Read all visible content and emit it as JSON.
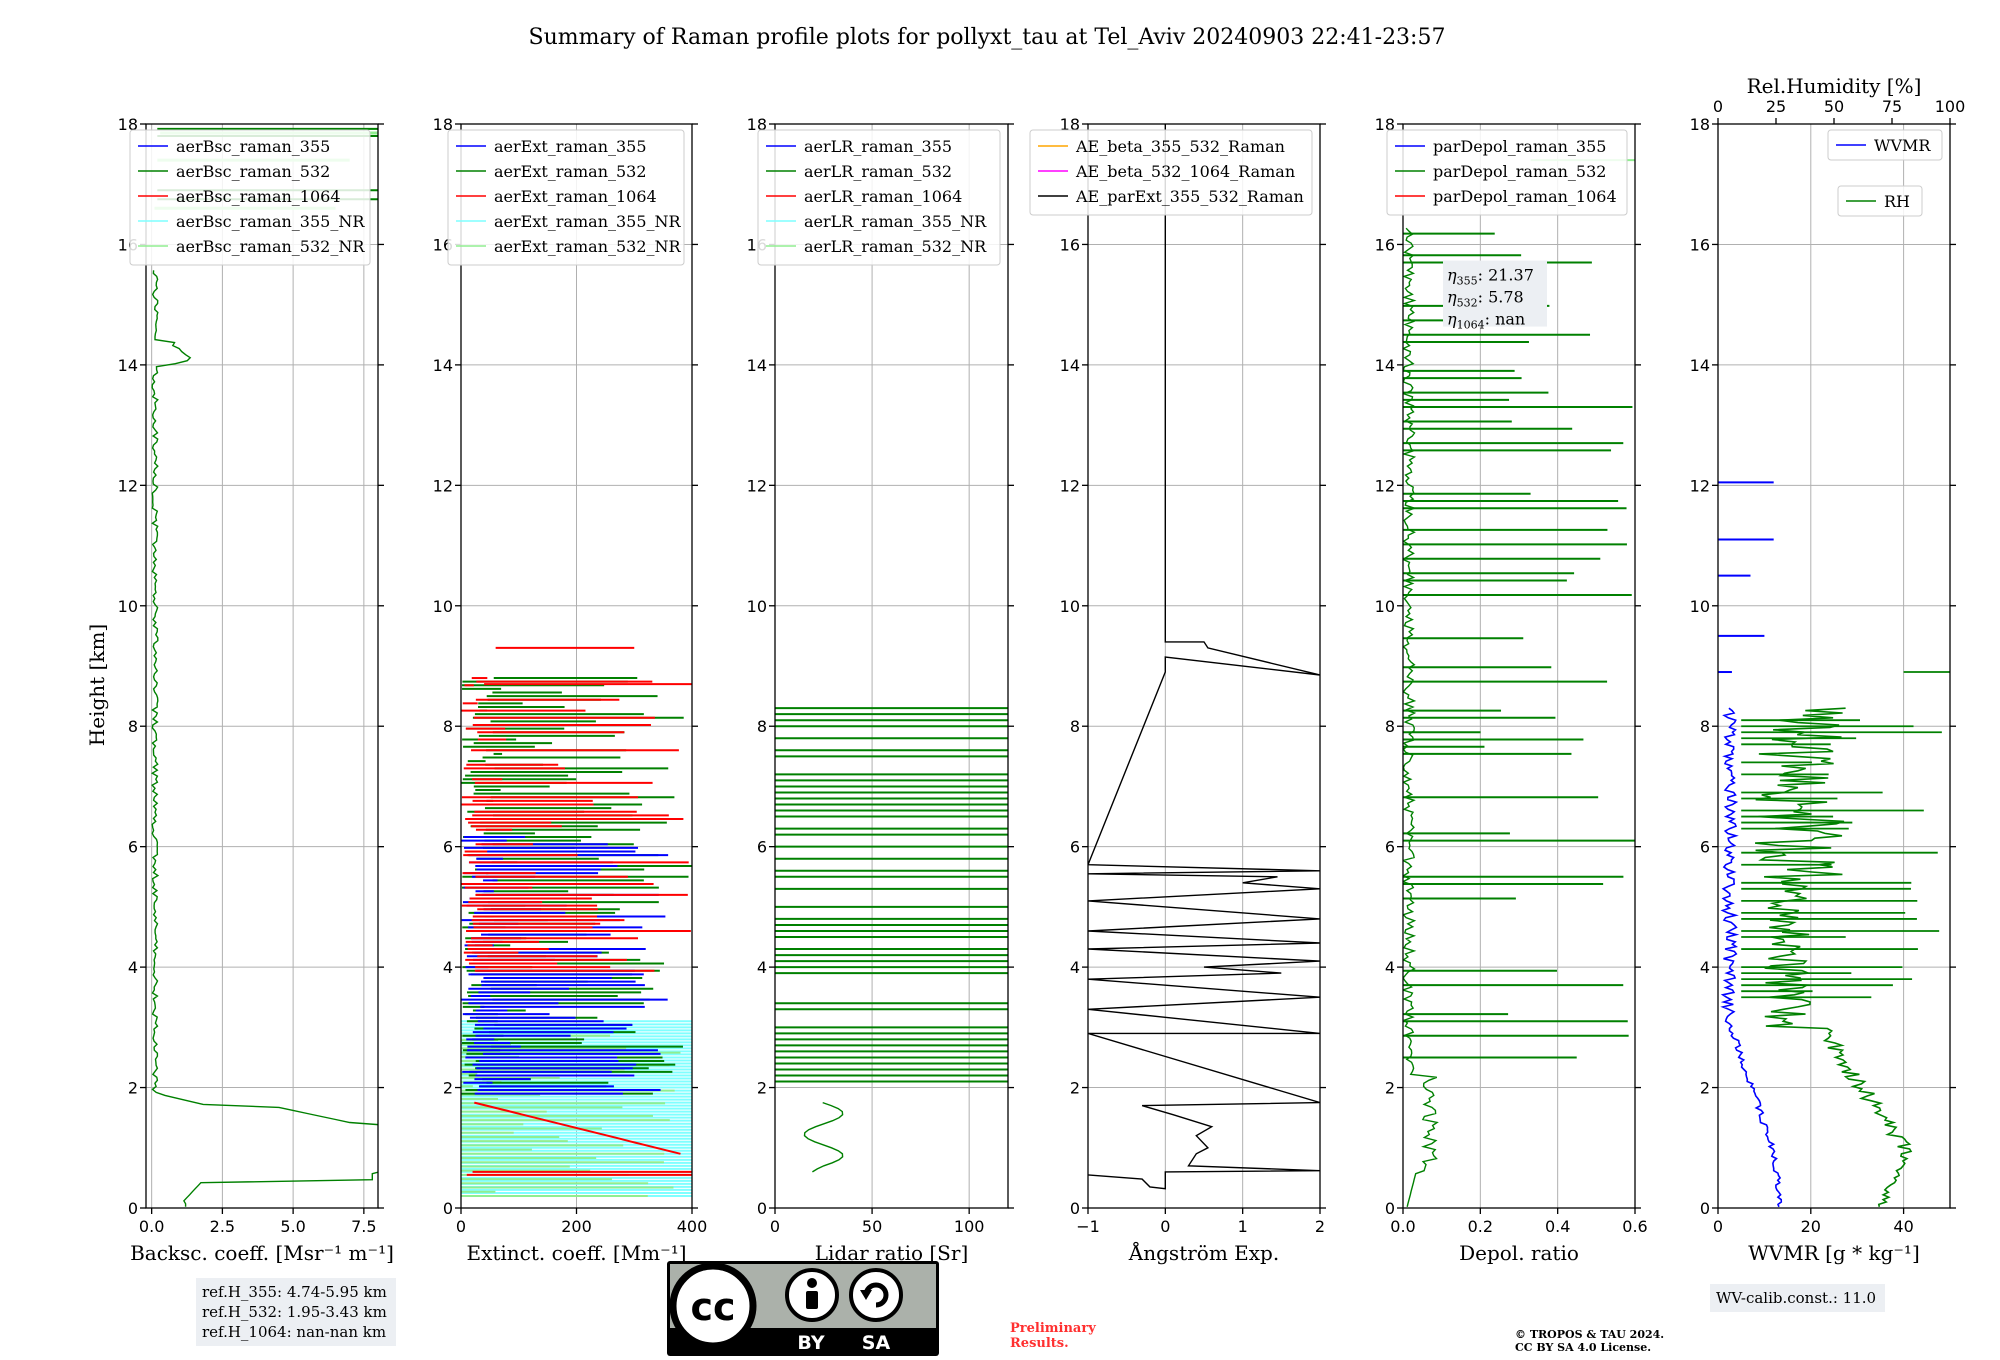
{
  "title": "Summary of Raman profile plots for pollyxt_tau at Tel_Aviv 20240903 22:41-23:57",
  "ylabel": "Height [km]",
  "colors": {
    "c355": "#0000ff",
    "c532": "#008000",
    "c1064": "#ff0000",
    "c355NR": "#7fffff",
    "c532NR": "#90ee90",
    "ae1": "#ffa500",
    "ae2": "#ff00ff",
    "ae3": "#000000",
    "prelim": "#ff3030"
  },
  "chart_data": [
    {
      "type": "line",
      "id": "bsc",
      "xlabel": "Backsc. coeff. [Msr⁻¹ m⁻¹]",
      "xlim": [
        -0.2,
        8.0
      ],
      "ylim": [
        0,
        18
      ],
      "xticks": [
        "0.0",
        "2.5",
        "5.0",
        "7.5"
      ],
      "xtick_values": [
        0,
        2.5,
        5,
        7.5
      ],
      "yticks": [
        0,
        2,
        4,
        6,
        8,
        10,
        12,
        14,
        16,
        18
      ],
      "legend": [
        "aerBsc_raman_355",
        "aerBsc_raman_532",
        "aerBsc_raman_1064",
        "aerBsc_raman_355_NR",
        "aerBsc_raman_532_NR"
      ],
      "legend_location": "top-right"
    },
    {
      "type": "line",
      "id": "ext",
      "xlabel": "Extinct. coeff. [Mm⁻¹]",
      "xlim": [
        0,
        400
      ],
      "ylim": [
        0,
        18
      ],
      "xticks": [
        "0",
        "200",
        "400"
      ],
      "xtick_values": [
        0,
        200,
        400
      ],
      "yticks": [
        0,
        2,
        4,
        6,
        8,
        10,
        12,
        14,
        16,
        18
      ],
      "legend": [
        "aerExt_raman_355",
        "aerExt_raman_532",
        "aerExt_raman_1064",
        "aerExt_raman_355_NR",
        "aerExt_raman_532_NR"
      ],
      "legend_location": "top-right"
    },
    {
      "type": "line",
      "id": "lr",
      "xlabel": "Lidar ratio [Sr]",
      "xlim": [
        0,
        120
      ],
      "ylim": [
        0,
        18
      ],
      "xticks": [
        "0",
        "50",
        "100"
      ],
      "xtick_values": [
        0,
        50,
        100
      ],
      "yticks": [
        0,
        2,
        4,
        6,
        8,
        10,
        12,
        14,
        16,
        18
      ],
      "legend": [
        "aerLR_raman_355",
        "aerLR_raman_532",
        "aerLR_raman_1064",
        "aerLR_raman_355_NR",
        "aerLR_raman_532_NR"
      ],
      "legend_location": "top-right"
    },
    {
      "type": "line",
      "id": "ae",
      "xlabel": "Ångström Exp.",
      "xlim": [
        -1,
        2
      ],
      "ylim": [
        0,
        18
      ],
      "xticks": [
        "−1",
        "0",
        "1",
        "2"
      ],
      "xtick_values": [
        -1,
        0,
        1,
        2
      ],
      "yticks": [
        0,
        2,
        4,
        6,
        8,
        10,
        12,
        14,
        16,
        18
      ],
      "legend": [
        "AE_beta_355_532_Raman",
        "AE_beta_532_1064_Raman",
        "AE_parExt_355_532_Raman"
      ],
      "legend_location": "top-right"
    },
    {
      "type": "line",
      "id": "dep",
      "xlabel": "Depol. ratio",
      "xlim": [
        0,
        0.6
      ],
      "ylim": [
        0,
        18
      ],
      "xticks": [
        "0.0",
        "0.2",
        "0.4",
        "0.6"
      ],
      "xtick_values": [
        0,
        0.2,
        0.4,
        0.6
      ],
      "yticks": [
        0,
        2,
        4,
        6,
        8,
        10,
        12,
        14,
        16,
        18
      ],
      "legend": [
        "parDepol_raman_355",
        "parDepol_raman_532",
        "parDepol_raman_1064"
      ],
      "legend_location": "top-right",
      "eta": [
        "η",
        "355",
        ": 21.37",
        "532",
        ": 5.78",
        "1064",
        ": nan"
      ]
    },
    {
      "type": "line",
      "id": "wv",
      "xlabel": "WVMR [g * kg⁻¹]",
      "xlim": [
        0,
        50
      ],
      "ylim": [
        0,
        18
      ],
      "xticks": [
        "0",
        "20",
        "40"
      ],
      "xtick_values": [
        0,
        20,
        40
      ],
      "yticks": [
        0,
        2,
        4,
        6,
        8,
        10,
        12,
        14,
        16,
        18
      ],
      "top_xlabel": "Rel.Humidity [%]",
      "top_xlim": [
        0,
        100
      ],
      "top_xticks": [
        "0",
        "25",
        "50",
        "75",
        "100"
      ],
      "top_xtick_values": [
        0,
        25,
        50,
        75,
        100
      ],
      "legend": [
        "WVMR",
        "RH"
      ],
      "legend_location": "top-right"
    }
  ],
  "refinfo": [
    "ref.H_355: 4.74-5.95 km",
    "ref.H_532: 1.95-3.43 km",
    "ref.H_1064: nan-nan km"
  ],
  "wvinfo": "WV-calib.const.: 11.0",
  "badge": {
    "cc": "cc",
    "by": "BY",
    "sa": "SA"
  },
  "preliminary": [
    "Preliminary",
    "Results."
  ],
  "copyright": [
    "© TROPOS & TAU 2024.",
    "CC BY SA 4.0 License."
  ]
}
